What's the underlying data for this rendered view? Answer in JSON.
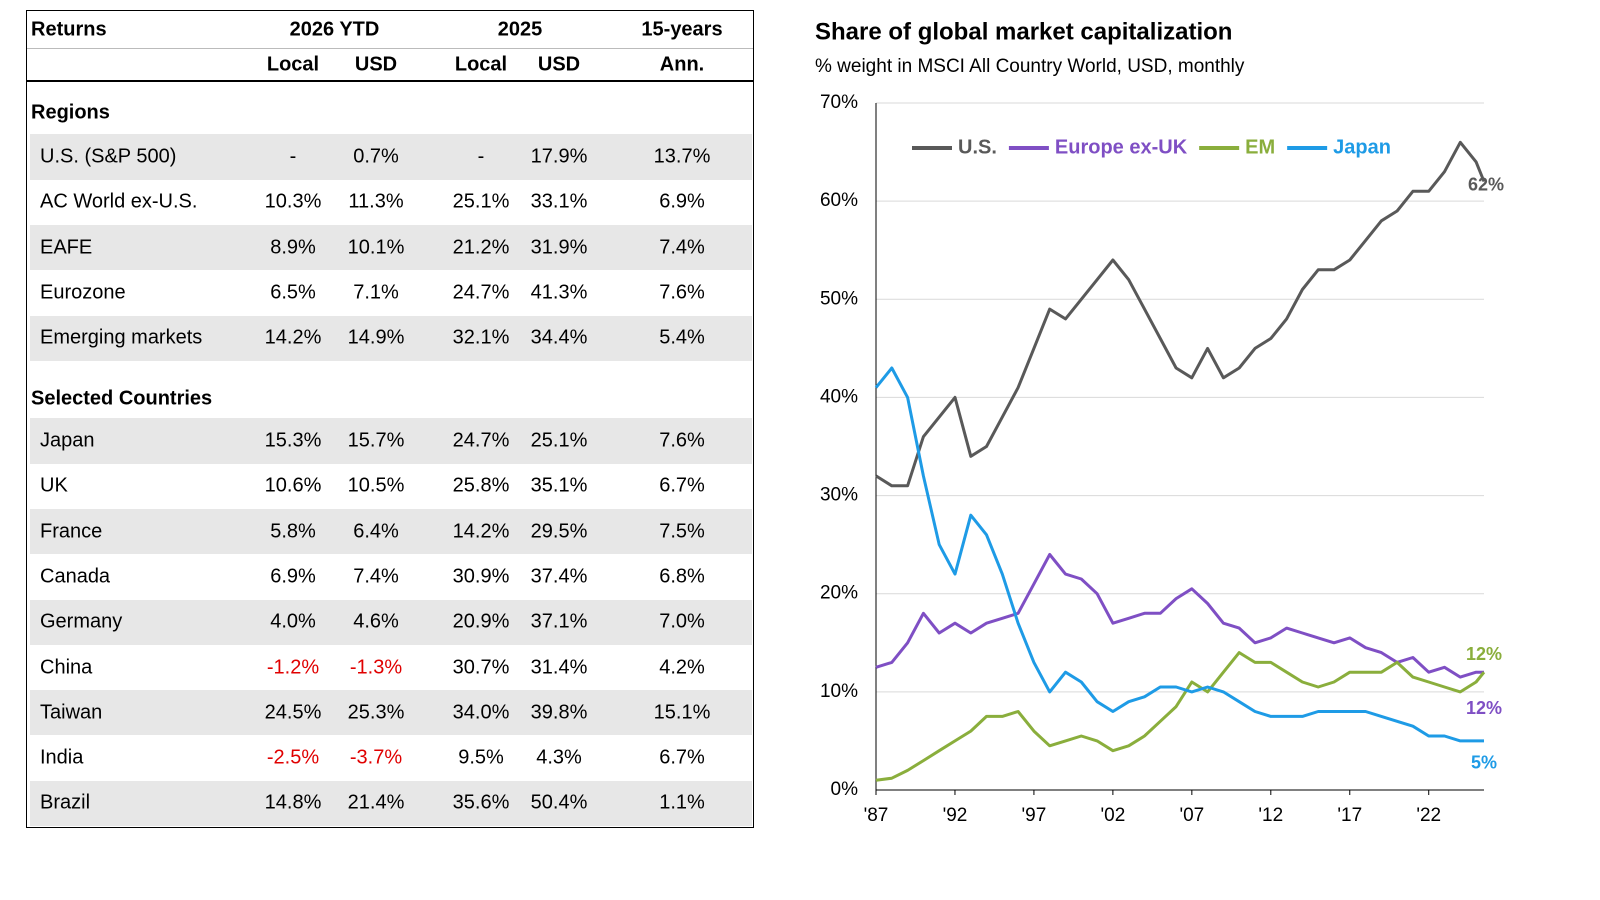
{
  "table": {
    "header": {
      "row1": [
        "Returns",
        "2026 YTD",
        "2025",
        "15-years"
      ],
      "row2": [
        "Local",
        "USD",
        "Local",
        "USD",
        "Ann."
      ]
    },
    "sections": [
      {
        "title": "Regions",
        "rows": [
          [
            "U.S. (S&P 500)",
            "-",
            "0.7%",
            "-",
            "17.9%",
            "13.7%"
          ],
          [
            "AC World ex-U.S.",
            "10.3%",
            "11.3%",
            "25.1%",
            "33.1%",
            "6.9%"
          ],
          [
            "EAFE",
            "8.9%",
            "10.1%",
            "21.2%",
            "31.9%",
            "7.4%"
          ],
          [
            "Eurozone",
            "6.5%",
            "7.1%",
            "24.7%",
            "41.3%",
            "7.6%"
          ],
          [
            "Emerging markets",
            "14.2%",
            "14.9%",
            "32.1%",
            "34.4%",
            "5.4%"
          ]
        ]
      },
      {
        "title": "Selected Countries",
        "rows": [
          [
            "Japan",
            "15.3%",
            "15.7%",
            "24.7%",
            "25.1%",
            "7.6%"
          ],
          [
            "UK",
            "10.6%",
            "10.5%",
            "25.8%",
            "35.1%",
            "6.7%"
          ],
          [
            "France",
            "5.8%",
            "6.4%",
            "14.2%",
            "29.5%",
            "7.5%"
          ],
          [
            "Canada",
            "6.9%",
            "7.4%",
            "30.9%",
            "37.4%",
            "6.8%"
          ],
          [
            "Germany",
            "4.0%",
            "4.6%",
            "20.9%",
            "37.1%",
            "7.0%"
          ],
          [
            "China",
            "-1.2%",
            "-1.3%",
            "30.7%",
            "31.4%",
            "4.2%"
          ],
          [
            "Taiwan",
            "24.5%",
            "25.3%",
            "34.0%",
            "39.8%",
            "15.1%"
          ],
          [
            "India",
            "-2.5%",
            "-3.7%",
            "9.5%",
            "4.3%",
            "6.7%"
          ],
          [
            "Brazil",
            "14.8%",
            "21.4%",
            "35.6%",
            "50.4%",
            "1.1%"
          ]
        ]
      }
    ]
  },
  "chart_data": {
    "type": "line",
    "title": "Share of global market capitalization",
    "subtitle": "% weight in MSCI All Country World, USD, monthly",
    "x": [
      1987,
      1988,
      1989,
      1990,
      1991,
      1992,
      1993,
      1994,
      1995,
      1996,
      1997,
      1998,
      1999,
      2000,
      2001,
      2002,
      2003,
      2004,
      2005,
      2006,
      2007,
      2008,
      2009,
      2010,
      2011,
      2012,
      2013,
      2014,
      2015,
      2016,
      2017,
      2018,
      2019,
      2020,
      2021,
      2022,
      2023,
      2024,
      2025,
      2025.5
    ],
    "series": [
      {
        "name": "U.S.",
        "color": "#595959",
        "end_label": "62%",
        "values": [
          32,
          31,
          31,
          36,
          38,
          40,
          34,
          35,
          38,
          41,
          45,
          49,
          48,
          50,
          52,
          54,
          52,
          49,
          46,
          43,
          42,
          45,
          42,
          43,
          45,
          46,
          48,
          51,
          53,
          53,
          54,
          56,
          58,
          59,
          61,
          61,
          63,
          66,
          64,
          62
        ]
      },
      {
        "name": "Europe ex-UK",
        "color": "#7f4fc4",
        "end_label": "12%",
        "values": [
          12.5,
          13,
          15,
          18,
          16,
          17,
          16,
          17,
          17.5,
          18,
          21,
          24,
          22,
          21.5,
          20,
          17,
          17.5,
          18,
          18,
          19.5,
          20.5,
          19,
          17,
          16.5,
          15,
          15.5,
          16.5,
          16,
          15.5,
          15,
          15.5,
          14.5,
          14,
          13,
          13.5,
          12,
          12.5,
          11.5,
          12,
          12
        ]
      },
      {
        "name": "EM",
        "color": "#8aae3c",
        "end_label": "12%",
        "values": [
          1,
          1.2,
          2,
          3,
          4,
          5,
          6,
          7.5,
          7.5,
          8,
          6,
          4.5,
          5,
          5.5,
          5,
          4,
          4.5,
          5.5,
          7,
          8.5,
          11,
          10,
          12,
          14,
          13,
          13,
          12,
          11,
          10.5,
          11,
          12,
          12,
          12,
          13,
          11.5,
          11,
          10.5,
          10,
          11,
          12
        ]
      },
      {
        "name": "Japan",
        "color": "#1e9be6",
        "end_label": "5%",
        "values": [
          41,
          43,
          40,
          32,
          25,
          22,
          28,
          26,
          22,
          17,
          13,
          10,
          12,
          11,
          9,
          8,
          9,
          9.5,
          10.5,
          10.5,
          10,
          10.5,
          10,
          9,
          8,
          7.5,
          7.5,
          7.5,
          8,
          8,
          8,
          8,
          7.5,
          7,
          6.5,
          5.5,
          5.5,
          5,
          5,
          5
        ]
      }
    ],
    "xlim": [
      1987,
      2025.5
    ],
    "xticks": [
      {
        "value": 1987,
        "label": "'87"
      },
      {
        "value": 1992,
        "label": "'92"
      },
      {
        "value": 1997,
        "label": "'97"
      },
      {
        "value": 2002,
        "label": "'02"
      },
      {
        "value": 2007,
        "label": "'07"
      },
      {
        "value": 2012,
        "label": "'12"
      },
      {
        "value": 2017,
        "label": "'17"
      },
      {
        "value": 2022,
        "label": "'22"
      }
    ],
    "ylim": [
      0,
      70
    ],
    "yticks": [
      {
        "value": 0,
        "label": "0%"
      },
      {
        "value": 10,
        "label": "10%"
      },
      {
        "value": 20,
        "label": "20%"
      },
      {
        "value": 30,
        "label": "30%"
      },
      {
        "value": 40,
        "label": "40%"
      },
      {
        "value": 50,
        "label": "50%"
      },
      {
        "value": 60,
        "label": "60%"
      },
      {
        "value": 70,
        "label": "70%"
      }
    ],
    "grid": true,
    "legend": "top"
  }
}
